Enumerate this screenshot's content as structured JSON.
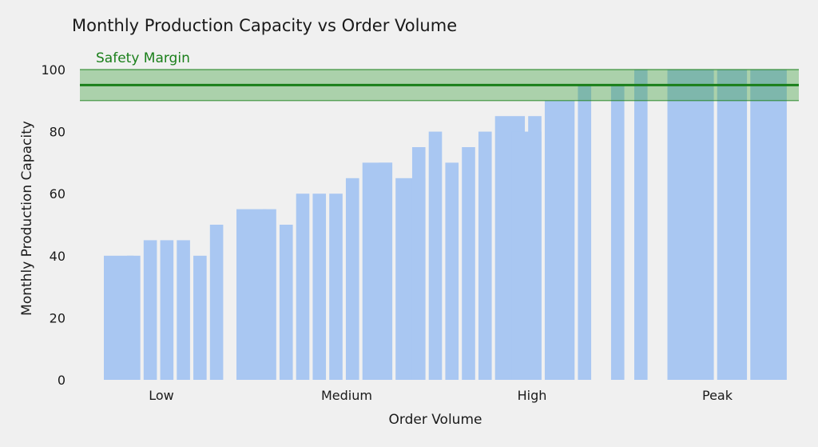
{
  "chart_data": {
    "type": "bar",
    "title": "Monthly Production Capacity vs Order Volume",
    "xlabel": "Order Volume",
    "ylabel": "Monthly Production Capacity",
    "ylim": [
      0,
      100
    ],
    "yticks": [
      0,
      20,
      40,
      60,
      80,
      100
    ],
    "category_labels": [
      "Low",
      "Medium",
      "High",
      "Peak"
    ],
    "x": [
      0.0,
      0.7,
      1.2,
      1.7,
      2.2,
      2.7,
      3.2,
      4.0,
      4.8,
      5.3,
      5.8,
      6.3,
      6.8,
      7.3,
      7.8,
      8.3,
      8.8,
      9.3,
      9.8,
      10.3,
      10.8,
      11.3,
      11.8,
      12.3,
      12.8,
      13.3,
      14.3,
      15.3,
      16.0,
      17.0,
      17.5,
      18.5,
      19.5
    ],
    "widths": [
      0.9,
      0.4,
      0.4,
      0.4,
      0.4,
      0.4,
      0.4,
      0.9,
      0.4,
      0.4,
      0.4,
      0.4,
      0.4,
      0.4,
      0.9,
      0.4,
      0.9,
      0.4,
      0.4,
      0.4,
      0.4,
      0.4,
      0.9,
      0.9,
      0.4,
      0.9,
      0.4,
      0.4,
      0.4,
      0.9,
      0.9,
      0.9,
      1.1
    ],
    "values": [
      40,
      40,
      45,
      45,
      45,
      40,
      50,
      55,
      55,
      50,
      60,
      60,
      60,
      65,
      70,
      70,
      65,
      75,
      80,
      70,
      75,
      80,
      85,
      80,
      85,
      90,
      95,
      95,
      100,
      100,
      100,
      100,
      100
    ],
    "bar_color": "#a9c7f2",
    "safety_margin": {
      "label": "Safety Margin",
      "line_value": 95,
      "band": [
        90,
        100
      ],
      "line_color": "#1a7f1a",
      "band_color": "#3a9d3a"
    }
  }
}
